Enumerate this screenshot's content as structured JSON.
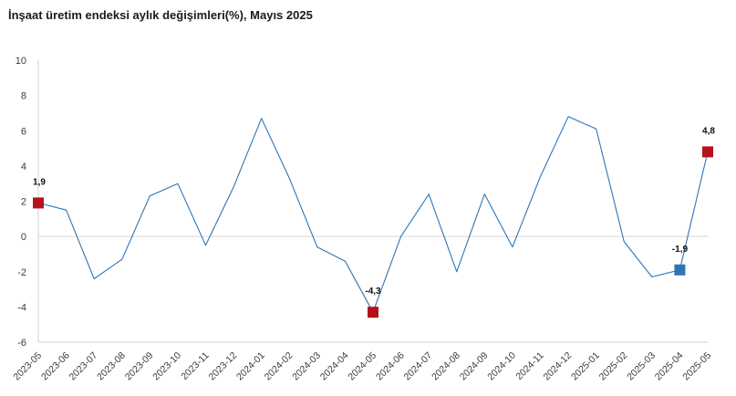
{
  "chart_data": {
    "type": "line",
    "title": "İnşaat üretim endeksi aylık değişimleri(%), Mayıs 2025",
    "xlabel": "",
    "ylabel": "",
    "ylim": [
      -6,
      10
    ],
    "yticks": [
      -6,
      -4,
      -2,
      0,
      2,
      4,
      6,
      8,
      10
    ],
    "grid": "zero-line only",
    "legend": "none",
    "categories": [
      "2023-05",
      "2023-06",
      "2023-07",
      "2023-08",
      "2023-09",
      "2023-10",
      "2023-11",
      "2023-12",
      "2024-01",
      "2024-02",
      "2024-03",
      "2024-04",
      "2024-05",
      "2024-06",
      "2024-07",
      "2024-08",
      "2024-09",
      "2024-10",
      "2024-11",
      "2024-12",
      "2025-01",
      "2025-02",
      "2025-03",
      "2025-04",
      "2025-05"
    ],
    "series": [
      {
        "values": [
          1.9,
          1.5,
          -2.4,
          -1.3,
          2.3,
          3.0,
          -0.5,
          2.8,
          6.7,
          3.3,
          -0.6,
          -1.4,
          -4.3,
          0.0,
          2.4,
          -2.0,
          2.4,
          -0.6,
          3.4,
          6.8,
          6.1,
          -0.3,
          -2.3,
          -1.9,
          4.8
        ],
        "color": "#2e75b6"
      }
    ],
    "highlighted_points": [
      {
        "category": "2023-05",
        "label": "1,9",
        "color": "#b5121b"
      },
      {
        "category": "2024-05",
        "label": "-4,3",
        "color": "#b5121b"
      },
      {
        "category": "2025-04",
        "label": "-1,9",
        "color": "#2e75b6"
      },
      {
        "category": "2025-05",
        "label": "4,8",
        "color": "#b5121b"
      }
    ],
    "colors": {
      "line": "#2e75b6",
      "marker_high": "#b5121b",
      "marker_blue": "#2e75b6",
      "axis": "#d0d0d0",
      "zero_line": "#d9d9d9"
    }
  }
}
